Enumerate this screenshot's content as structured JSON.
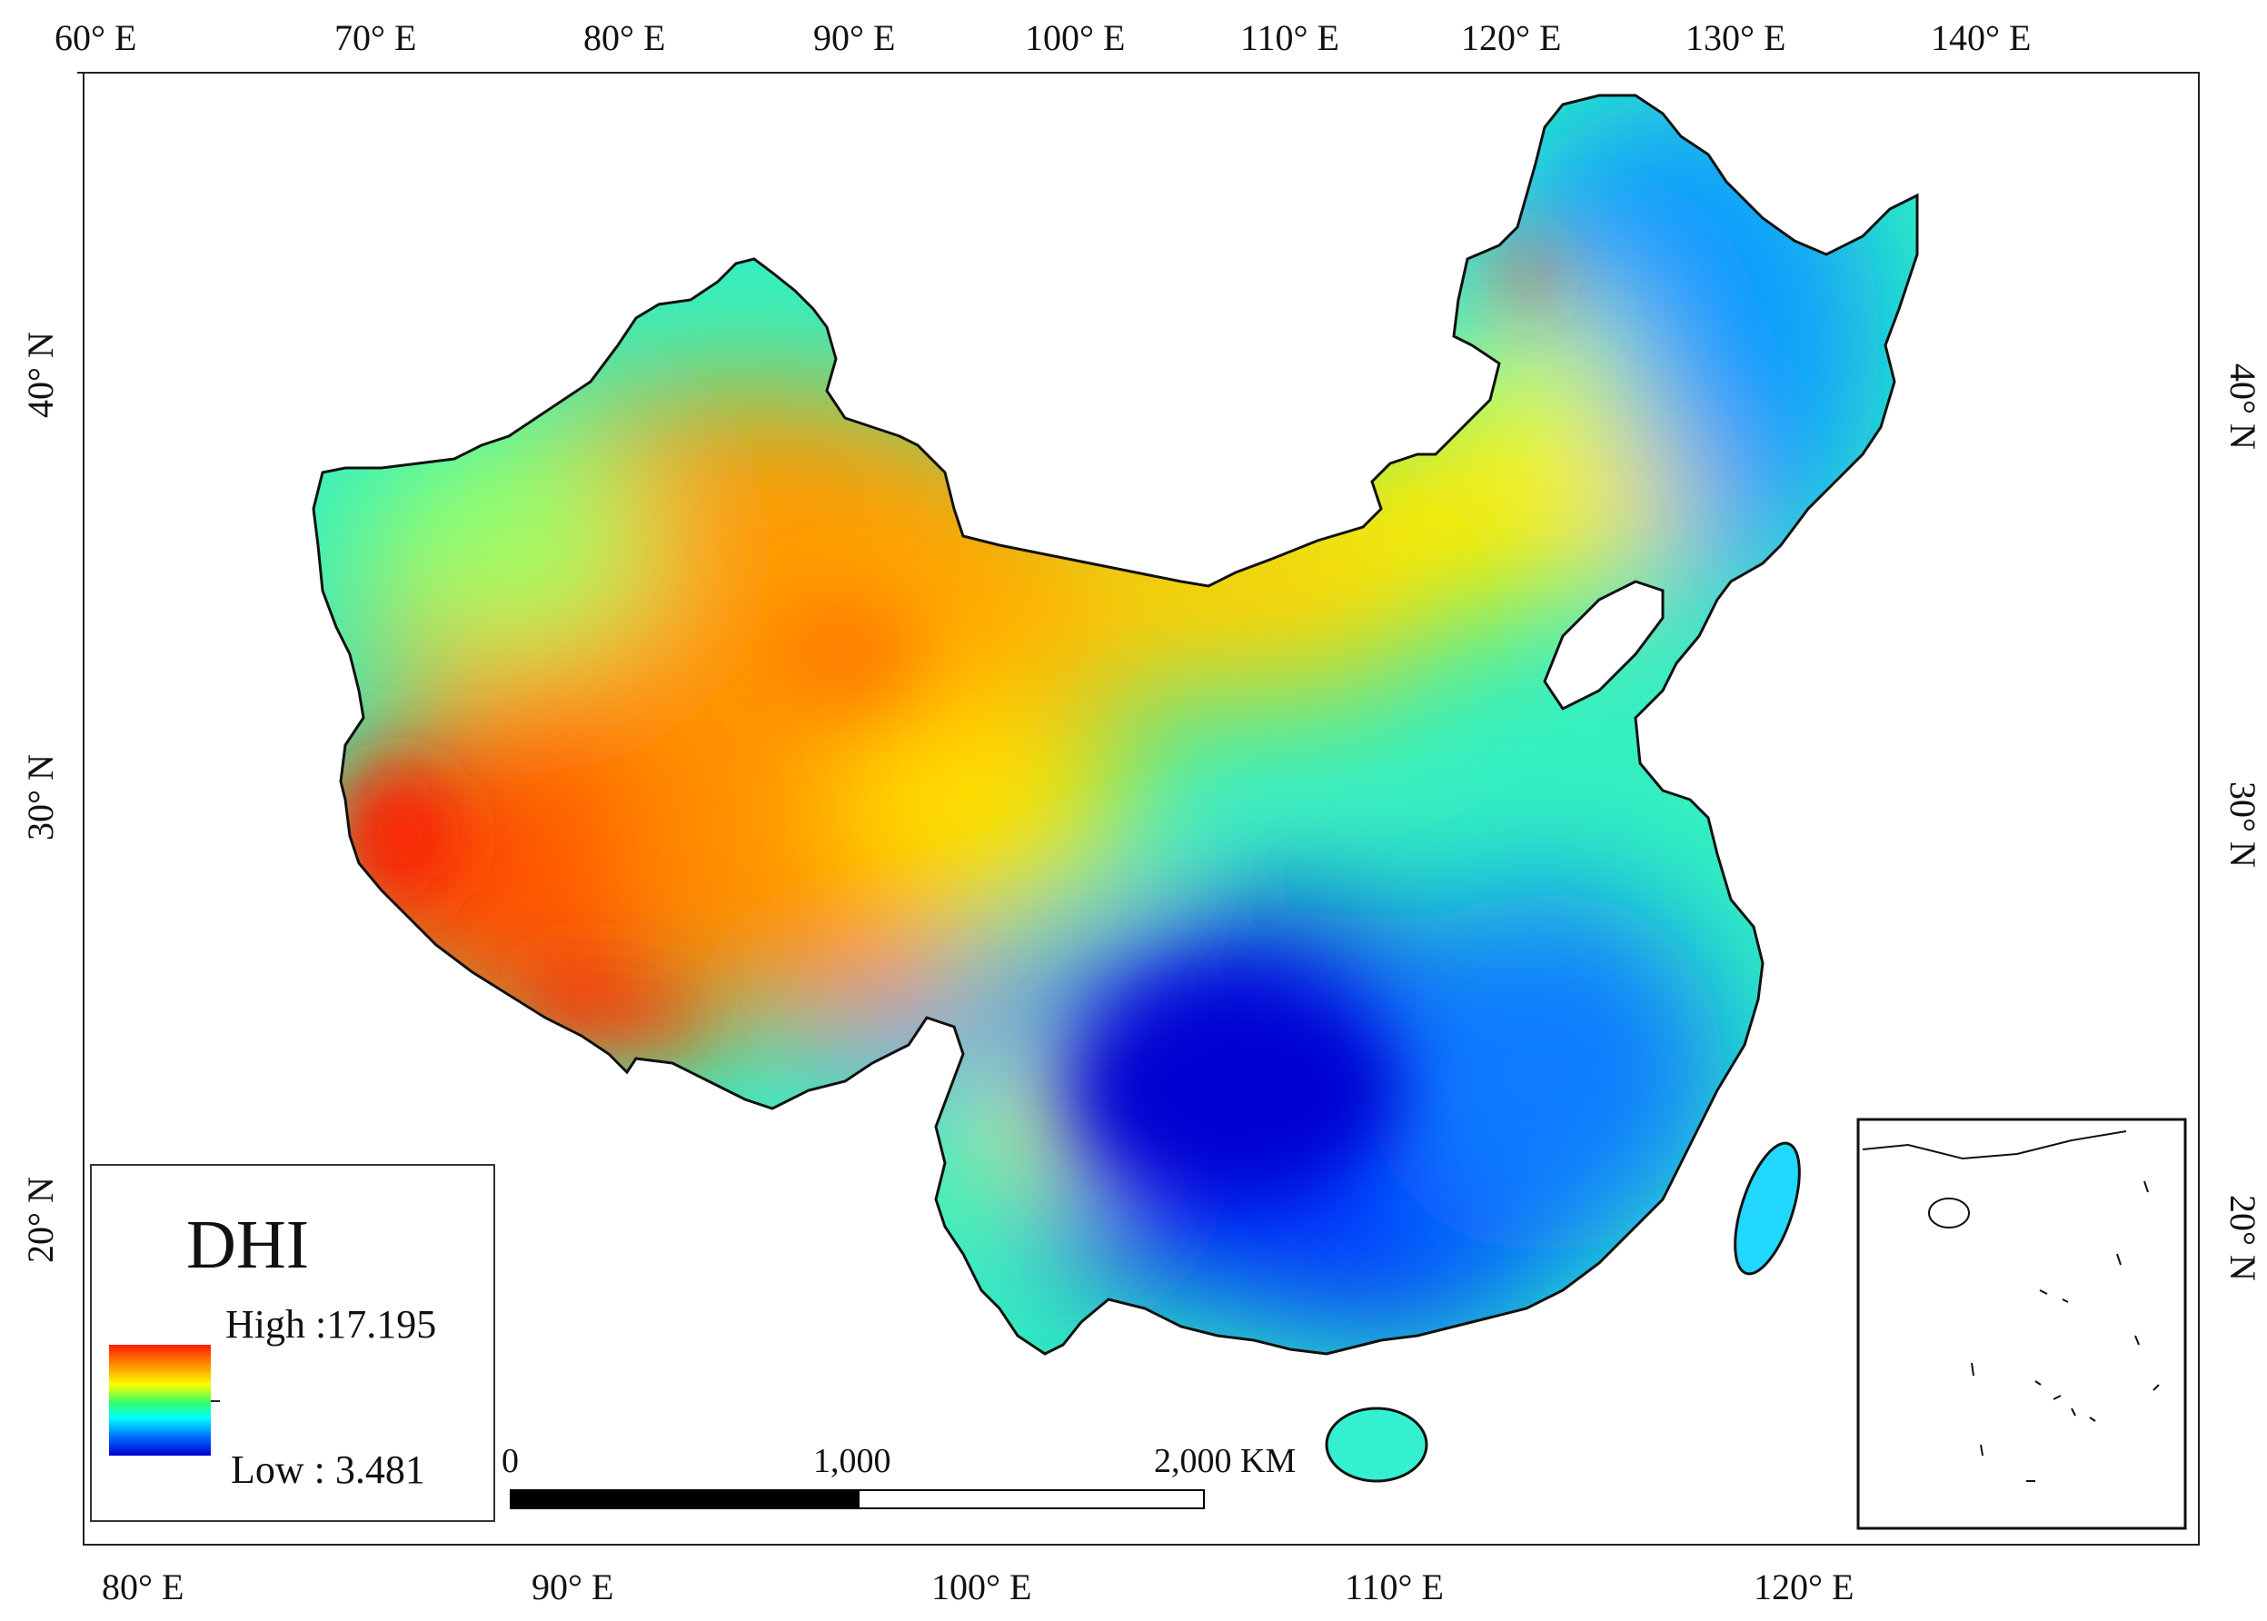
{
  "map": {
    "top_axis_labels": [
      "60° E",
      "70° E",
      "80° E",
      "90° E",
      "100° E",
      "110° E",
      "120° E",
      "130° E",
      "140° E"
    ],
    "bottom_axis_labels": [
      "80° E",
      "90° E",
      "100° E",
      "110° E",
      "120° E"
    ],
    "left_axis_labels": [
      "40° N",
      "30° N",
      "20° N"
    ],
    "right_axis_labels": [
      "40° N",
      "30° N",
      "20° N"
    ]
  },
  "legend": {
    "title": "DHI",
    "high_label": "High :17.195",
    "low_label": "Low : 3.481",
    "high_value": 17.195,
    "low_value": 3.481,
    "colors": [
      "#ff1a00",
      "#ff8c00",
      "#ffff00",
      "#33ff66",
      "#00ffff",
      "#0066ff",
      "#0000d0"
    ]
  },
  "scale_bar": {
    "labels": [
      "0",
      "1,000",
      "2,000 KM"
    ]
  }
}
